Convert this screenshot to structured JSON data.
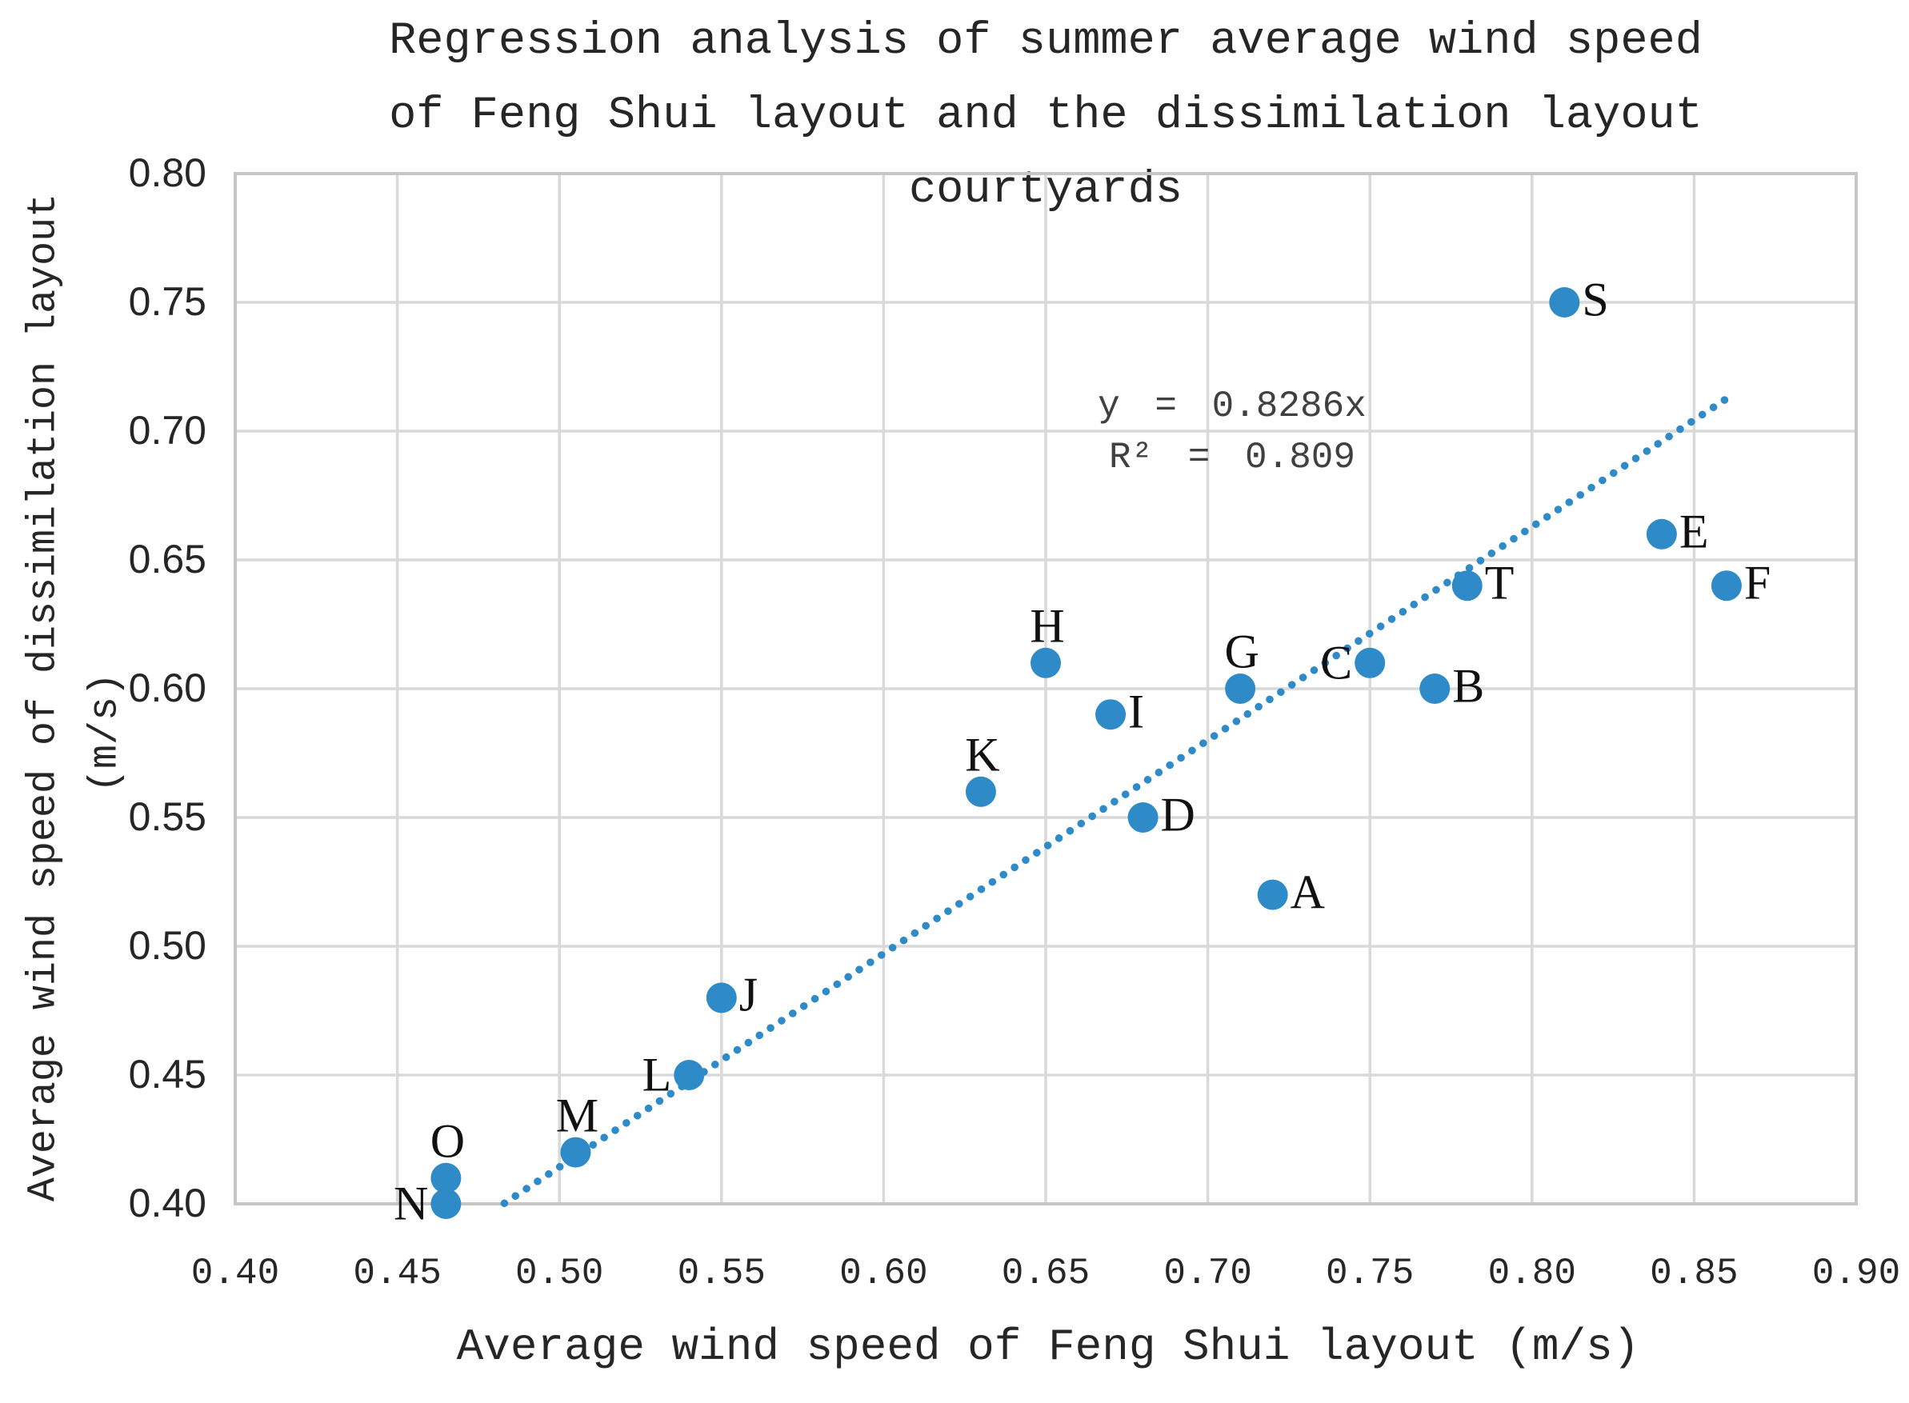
{
  "chart_data": {
    "type": "scatter",
    "title_lines": [
      "Regression analysis of summer average wind speed",
      "of Feng Shui layout and the dissimilation layout",
      "courtyards"
    ],
    "xlabel": "Average wind speed of Feng Shui layout (m/s)",
    "ylabel_lines": [
      "Average wind speed of dissimilation layout",
      "(m/s)"
    ],
    "xlim": [
      0.4,
      0.9
    ],
    "ylim": [
      0.4,
      0.8
    ],
    "xticks": [
      0.4,
      0.45,
      0.5,
      0.55,
      0.6,
      0.65,
      0.7,
      0.75,
      0.8,
      0.85,
      0.9
    ],
    "yticks": [
      0.4,
      0.45,
      0.5,
      0.55,
      0.6,
      0.65,
      0.7,
      0.75,
      0.8
    ],
    "grid": true,
    "legend": "none",
    "annotation": {
      "equation": "y = 0.8286x",
      "r_squared": "R² = 0.809"
    },
    "trendline": {
      "slope": 0.8286,
      "intercept": 0,
      "x_start": 0.483,
      "x_end": 0.861,
      "style": "dotted"
    },
    "points": [
      {
        "label": "A",
        "x": 0.72,
        "y": 0.52,
        "label_pos": "right"
      },
      {
        "label": "B",
        "x": 0.77,
        "y": 0.6,
        "label_pos": "right"
      },
      {
        "label": "C",
        "x": 0.75,
        "y": 0.61,
        "label_pos": "left"
      },
      {
        "label": "D",
        "x": 0.68,
        "y": 0.55,
        "label_pos": "right"
      },
      {
        "label": "E",
        "x": 0.84,
        "y": 0.66,
        "label_pos": "right"
      },
      {
        "label": "F",
        "x": 0.86,
        "y": 0.64,
        "label_pos": "right"
      },
      {
        "label": "G",
        "x": 0.71,
        "y": 0.6,
        "label_pos": "above"
      },
      {
        "label": "H",
        "x": 0.65,
        "y": 0.61,
        "label_pos": "above"
      },
      {
        "label": "I",
        "x": 0.67,
        "y": 0.59,
        "label_pos": "right"
      },
      {
        "label": "J",
        "x": 0.55,
        "y": 0.48,
        "label_pos": "right"
      },
      {
        "label": "K",
        "x": 0.63,
        "y": 0.56,
        "label_pos": "above"
      },
      {
        "label": "L",
        "x": 0.54,
        "y": 0.45,
        "label_pos": "left"
      },
      {
        "label": "M",
        "x": 0.505,
        "y": 0.42,
        "label_pos": "above"
      },
      {
        "label": "N",
        "x": 0.465,
        "y": 0.4,
        "label_pos": "left"
      },
      {
        "label": "O",
        "x": 0.465,
        "y": 0.41,
        "label_pos": "above"
      },
      {
        "label": "S",
        "x": 0.81,
        "y": 0.75,
        "label_pos": "right"
      },
      {
        "label": "T",
        "x": 0.78,
        "y": 0.64,
        "label_pos": "right"
      }
    ],
    "colors": {
      "marker": "#2E8BC8",
      "trendline": "#2E8BC8",
      "gridline": "#D9D9D9",
      "axis_border": "#C6C6C6",
      "text": "#262626",
      "annotation_text": "#404040"
    }
  }
}
